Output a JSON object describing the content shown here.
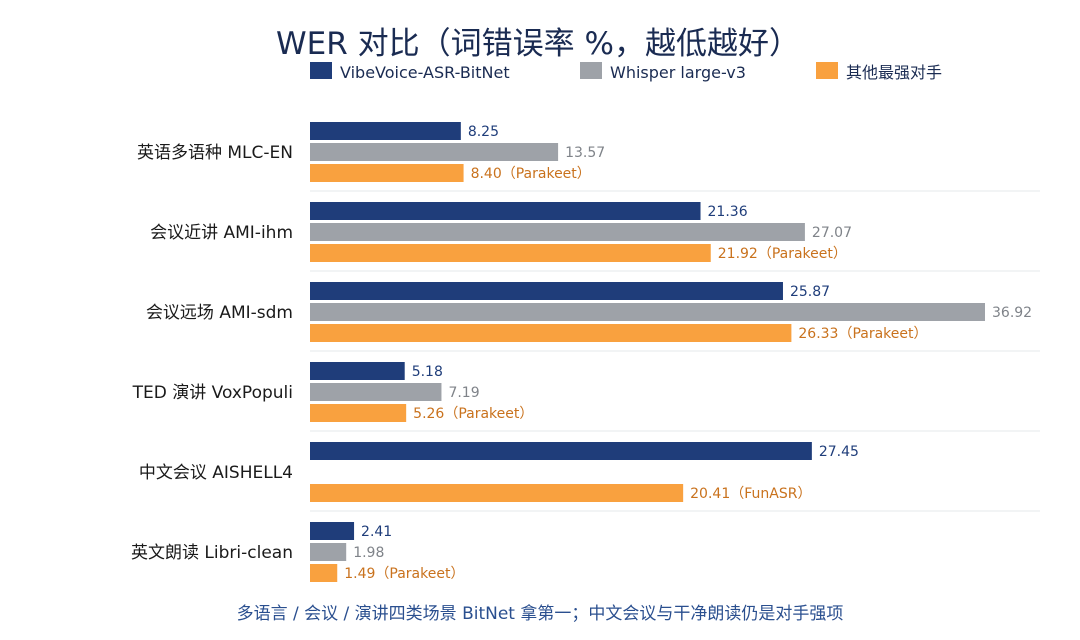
{
  "chart_data": {
    "type": "bar",
    "orientation": "horizontal",
    "title": "WER 对比（词错误率 %，越低越好）",
    "footnote": "多语言 / 会议 / 演讲四类场景 BitNet 拿第一；中文会议与干净朗读仍是对手强项",
    "categories": [
      "英语多语种 MLC-EN",
      "会议近讲 AMI-ihm",
      "会议远场 AMI-sdm",
      "TED 演讲 VoxPopuli",
      "中文会议 AISHELL4",
      "英文朗读 Libri-clean"
    ],
    "series": [
      {
        "name": "VibeVoice-ASR-BitNet",
        "color": "#1f3d7a",
        "label_color": "#1f3d7a",
        "values": [
          8.25,
          21.36,
          25.87,
          5.18,
          27.45,
          2.41
        ],
        "labels": [
          "8.25",
          "21.36",
          "25.87",
          "5.18",
          "27.45",
          "2.41"
        ]
      },
      {
        "name": "Whisper large-v3",
        "color": "#9ea2a8",
        "label_color": "#7f8389",
        "values": [
          13.57,
          27.07,
          36.92,
          7.19,
          null,
          1.98
        ],
        "labels": [
          "13.57",
          "27.07",
          "36.92",
          "7.19",
          "",
          "1.98"
        ]
      },
      {
        "name": "其他最强对手",
        "color": "#f9a13f",
        "label_color": "#c9721d",
        "values": [
          8.4,
          21.92,
          26.33,
          5.26,
          20.41,
          1.49
        ],
        "labels": [
          "8.40（Parakeet）",
          "21.92（Parakeet）",
          "26.33（Parakeet）",
          "5.26（Parakeet）",
          "20.41（FunASR）",
          "1.49（Parakeet）"
        ]
      }
    ],
    "xlim": [
      0,
      36.92
    ],
    "grid": false,
    "legend_position": "top"
  }
}
